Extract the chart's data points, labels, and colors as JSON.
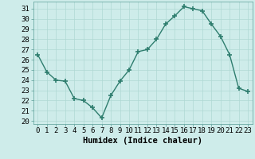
{
  "x": [
    0,
    1,
    2,
    3,
    4,
    5,
    6,
    7,
    8,
    9,
    10,
    11,
    12,
    13,
    14,
    15,
    16,
    17,
    18,
    19,
    20,
    21,
    22,
    23
  ],
  "y": [
    26.5,
    24.8,
    24.0,
    23.9,
    22.2,
    22.0,
    21.3,
    20.3,
    22.5,
    23.9,
    25.0,
    26.8,
    27.0,
    28.0,
    29.5,
    30.3,
    31.2,
    31.0,
    30.8,
    29.5,
    28.3,
    26.5,
    23.2,
    22.9
  ],
  "line_color": "#2e7d6e",
  "marker": "+",
  "marker_size": 4,
  "bg_color": "#ceecea",
  "grid_color": "#afd8d4",
  "xlabel": "Humidex (Indice chaleur)",
  "ylabel_ticks": [
    20,
    21,
    22,
    23,
    24,
    25,
    26,
    27,
    28,
    29,
    30,
    31
  ],
  "ylim": [
    19.7,
    31.7
  ],
  "xlim": [
    -0.5,
    23.5
  ],
  "tick_fontsize": 6.5,
  "xlabel_fontsize": 7.5
}
